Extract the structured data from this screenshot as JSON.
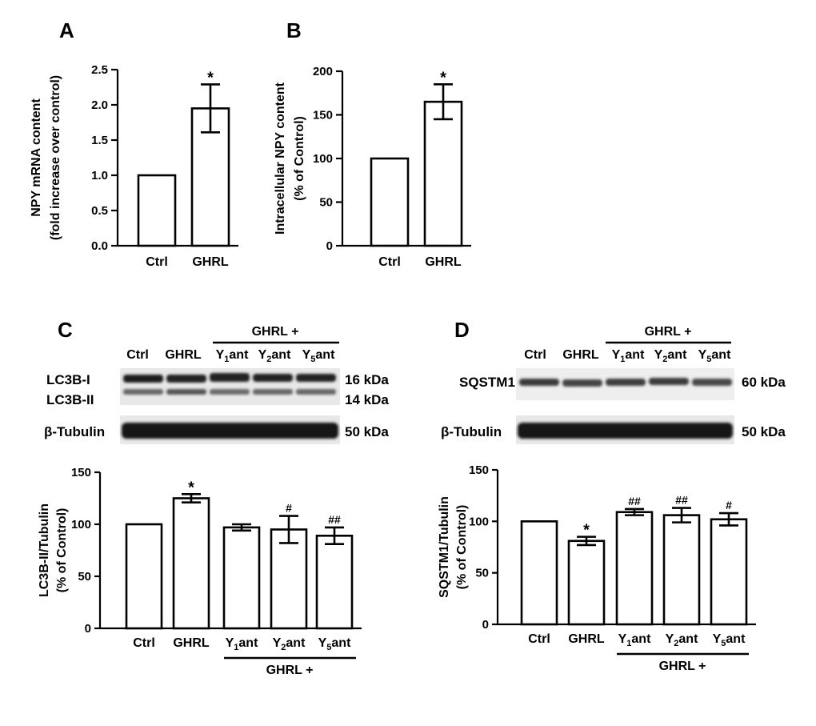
{
  "panel_labels": [
    "A",
    "B",
    "C",
    "D"
  ],
  "blots": {
    "C": {
      "group_label": "GHRL +",
      "lanes": [
        {
          "main": "Ctrl",
          "sub": ""
        },
        {
          "main": "GHRL",
          "sub": ""
        },
        {
          "main": "Y",
          "sub": "1",
          "post": "ant"
        },
        {
          "main": "Y",
          "sub": "2",
          "post": "ant"
        },
        {
          "main": "Y",
          "sub": "5",
          "post": "ant"
        }
      ],
      "rows": [
        {
          "labels": [
            "LC3B-I",
            "LC3B-II"
          ],
          "kda": [
            "16 kDa",
            "14 kDa"
          ]
        },
        {
          "labels": [
            "β-Tubulin"
          ],
          "kda": [
            "50 kDa"
          ]
        }
      ]
    },
    "D": {
      "group_label": "GHRL +",
      "lanes": [
        {
          "main": "Ctrl",
          "sub": ""
        },
        {
          "main": "GHRL",
          "sub": ""
        },
        {
          "main": "Y",
          "sub": "1",
          "post": "ant"
        },
        {
          "main": "Y",
          "sub": "2",
          "post": "ant"
        },
        {
          "main": "Y",
          "sub": "5",
          "post": "ant"
        }
      ],
      "rows": [
        {
          "labels": [
            "SQSTM1"
          ],
          "kda": [
            "60 kDa"
          ]
        },
        {
          "labels": [
            "β-Tubulin"
          ],
          "kda": [
            "50 kDa"
          ]
        }
      ]
    }
  },
  "chart_data": [
    {
      "panel": "A",
      "type": "bar",
      "ylabel": [
        "NPY mRNA content",
        "(fold increase over control)"
      ],
      "ylim": [
        0,
        2.5
      ],
      "yticks": [
        "0.0",
        "0.5",
        "1.0",
        "1.5",
        "2.0",
        "2.5"
      ],
      "categories": [
        {
          "main": "Ctrl"
        },
        {
          "main": "GHRL"
        }
      ],
      "values": [
        1.0,
        1.95
      ],
      "errors": [
        0,
        0.34
      ],
      "significance": [
        "",
        "*"
      ],
      "group_label": ""
    },
    {
      "panel": "B",
      "type": "bar",
      "ylabel": [
        "Intracellular NPY content",
        "(% of Control)"
      ],
      "ylim": [
        0,
        200
      ],
      "yticks": [
        "0",
        "50",
        "100",
        "150",
        "200"
      ],
      "categories": [
        {
          "main": "Ctrl"
        },
        {
          "main": "GHRL"
        }
      ],
      "values": [
        100,
        165
      ],
      "errors": [
        0,
        20
      ],
      "significance": [
        "",
        "*"
      ],
      "group_label": ""
    },
    {
      "panel": "C",
      "type": "bar",
      "ylabel": [
        "LC3B-II/Tubulin",
        "(% of Control)"
      ],
      "ylim": [
        0,
        150
      ],
      "yticks": [
        "0",
        "50",
        "100",
        "150"
      ],
      "categories": [
        {
          "main": "Ctrl"
        },
        {
          "main": "GHRL"
        },
        {
          "main": "Y",
          "sub": "1",
          "post": "ant"
        },
        {
          "main": "Y",
          "sub": "2",
          "post": "ant"
        },
        {
          "main": "Y",
          "sub": "5",
          "post": "ant"
        }
      ],
      "values": [
        100,
        125,
        97,
        95,
        89
      ],
      "errors": [
        0,
        4,
        3,
        13,
        8
      ],
      "significance": [
        "",
        "*",
        "",
        "#",
        "##"
      ],
      "group_label": "GHRL +"
    },
    {
      "panel": "D",
      "type": "bar",
      "ylabel": [
        "SQSTM1/Tubulin",
        "(% of Control)"
      ],
      "ylim": [
        0,
        150
      ],
      "yticks": [
        "0",
        "50",
        "100",
        "150"
      ],
      "categories": [
        {
          "main": "Ctrl"
        },
        {
          "main": "GHRL"
        },
        {
          "main": "Y",
          "sub": "1",
          "post": "ant"
        },
        {
          "main": "Y",
          "sub": "2",
          "post": "ant"
        },
        {
          "main": "Y",
          "sub": "5",
          "post": "ant"
        }
      ],
      "values": [
        100,
        81,
        109,
        106,
        102
      ],
      "errors": [
        0,
        4,
        3,
        7,
        6
      ],
      "significance": [
        "",
        "*",
        "##",
        "##",
        "#"
      ],
      "group_label": "GHRL +"
    }
  ]
}
